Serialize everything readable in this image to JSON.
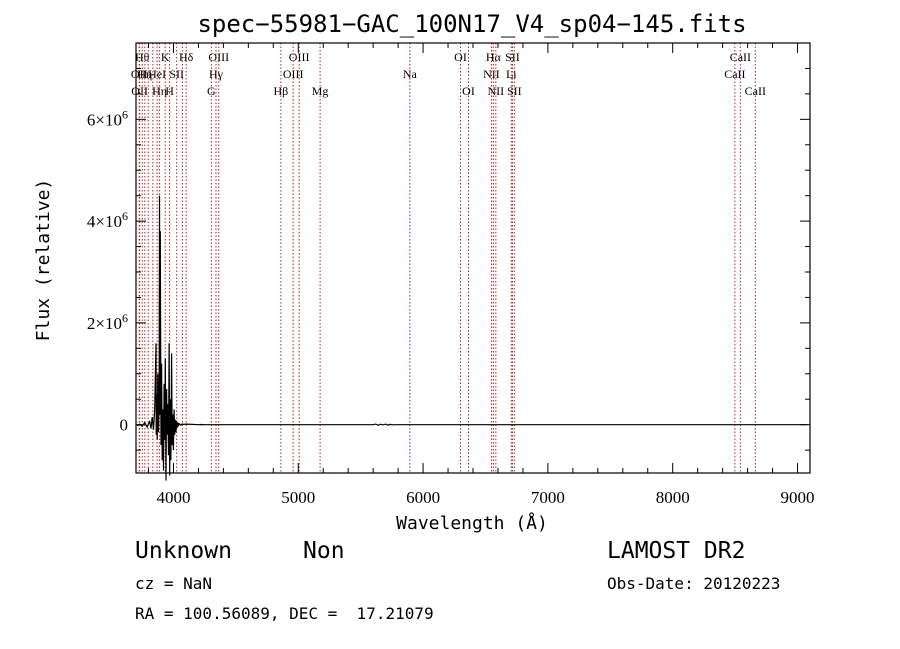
{
  "chart_data": {
    "type": "line",
    "title": "spec−55981−GAC_100N17_V4_sp04−145.fits",
    "xlabel": "Wavelength (Å)",
    "ylabel": "Flux (relative)",
    "xlim": [
      3700,
      9100
    ],
    "ylim": [
      -950000,
      7500000
    ],
    "x_ticks": [
      4000,
      5000,
      6000,
      7000,
      8000,
      9000
    ],
    "y_ticks": [
      {
        "value": 0,
        "base": "0",
        "exp": ""
      },
      {
        "value": 2000000,
        "base": "2×10",
        "exp": "6"
      },
      {
        "value": 4000000,
        "base": "4×10",
        "exp": "6"
      },
      {
        "value": 6000000,
        "base": "6×10",
        "exp": "6"
      }
    ],
    "spectrum": {
      "x": [
        3710,
        3730,
        3750,
        3770,
        3790,
        3800,
        3810,
        3820,
        3830,
        3840,
        3850,
        3860,
        3862,
        3866,
        3870,
        3875,
        3880,
        3885,
        3888,
        3892,
        3895,
        3900,
        3905,
        3910,
        3915,
        3920,
        3925,
        3930,
        3935,
        3940,
        3945,
        3950,
        3955,
        3960,
        3965,
        3970,
        3975,
        3980,
        3985,
        3990,
        3995,
        4000,
        4005,
        4010,
        4015,
        4020,
        4025,
        4030,
        4035,
        4040,
        4045,
        4050,
        4060,
        4070,
        4080,
        4100,
        4150,
        4200,
        4220,
        4250,
        4300,
        5600,
        5620,
        5640,
        5660,
        5680,
        5700,
        5720,
        5740,
        5760,
        5780,
        5800,
        6000,
        7000,
        8000,
        9000,
        9080
      ],
      "y": [
        -20000,
        10000,
        -30000,
        40000,
        -50000,
        20000,
        60000,
        -80000,
        150000,
        -100000,
        300000,
        1600000,
        -200000,
        600000,
        -300000,
        1000000,
        -150000,
        500000,
        4500000,
        200000,
        3800000,
        -400000,
        1200000,
        -700000,
        300000,
        -900000,
        800000,
        -300000,
        1300000,
        -1100000,
        700000,
        -200000,
        400000,
        -600000,
        1600000,
        -1000000,
        500000,
        -700000,
        1400000,
        -400000,
        200000,
        -500000,
        300000,
        -200000,
        100000,
        -150000,
        80000,
        -60000,
        40000,
        -30000,
        20000,
        10000,
        -10000,
        15000,
        5000,
        10000,
        5000,
        0,
        3000,
        0,
        0,
        0,
        10000,
        -10000,
        8000,
        -5000,
        10000,
        -8000,
        5000,
        -3000,
        0,
        0,
        0,
        0,
        0,
        0,
        0
      ]
    },
    "lines": [
      {
        "w": 3726,
        "label": "OII",
        "row": 1
      },
      {
        "w": 3729,
        "label": "OII",
        "row": 2
      },
      {
        "w": 3750,
        "label": "Hθ",
        "row": 0
      },
      {
        "w": 3771,
        "label": "Hη",
        "row": 1
      },
      {
        "w": 3798,
        "label": "",
        "row": 1
      },
      {
        "w": 3835,
        "label": "",
        "row": 2
      },
      {
        "w": 3869,
        "label": "HeI",
        "row": 1
      },
      {
        "w": 3889,
        "label": "Hη",
        "row": 2
      },
      {
        "w": 3934,
        "label": "K",
        "row": 0
      },
      {
        "w": 3969,
        "label": "H",
        "row": 2
      },
      {
        "w": 4026,
        "label": "SII",
        "row": 1
      },
      {
        "w": 4072,
        "label": "",
        "row": 1
      },
      {
        "w": 4102,
        "label": "Hδ",
        "row": 0
      },
      {
        "w": 4304,
        "label": "G",
        "row": 2
      },
      {
        "w": 4341,
        "label": "Hγ",
        "row": 1
      },
      {
        "w": 4363,
        "label": "OIII",
        "row": 0
      },
      {
        "w": 4861,
        "label": "Hβ",
        "row": 2
      },
      {
        "w": 4959,
        "label": "OIII",
        "row": 1
      },
      {
        "w": 5007,
        "label": "OIII",
        "row": 0
      },
      {
        "w": 5175,
        "label": "Mg",
        "row": 2
      },
      {
        "w": 5894,
        "label": "Na",
        "row": 1
      },
      {
        "w": 6300,
        "label": "OI",
        "row": 0
      },
      {
        "w": 6364,
        "label": "OI",
        "row": 2
      },
      {
        "w": 6548,
        "label": "NII",
        "row": 1
      },
      {
        "w": 6563,
        "label": "Hα",
        "row": 0
      },
      {
        "w": 6583,
        "label": "NII",
        "row": 2
      },
      {
        "w": 6707,
        "label": "Li",
        "row": 1
      },
      {
        "w": 6716,
        "label": "SII",
        "row": 0
      },
      {
        "w": 6731,
        "label": "SII",
        "row": 2
      },
      {
        "w": 8498,
        "label": "CaII",
        "row": 1
      },
      {
        "w": 8542,
        "label": "CaII",
        "row": 0
      },
      {
        "w": 8662,
        "label": "CaII",
        "row": 2
      }
    ]
  },
  "info": {
    "class": "Unknown",
    "subclass": "Non",
    "survey": "LAMOST DR2",
    "cz": "cz = NaN",
    "obs_date": "Obs-Date: 20120223",
    "radec": "RA = 100.56089, DEC =  17.21079"
  },
  "colors": {
    "line_marker": "#b22222",
    "spectrum": "#000000"
  }
}
